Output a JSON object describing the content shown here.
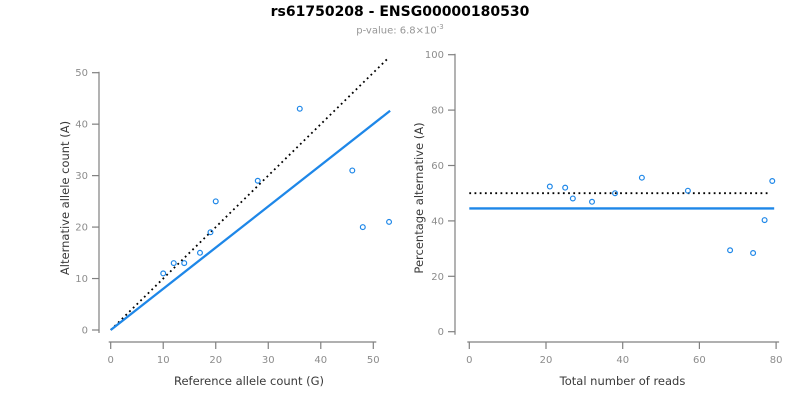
{
  "header": {
    "title": "rs61750208 - ENSG00000180530",
    "subtitle_prefix": "p-value: 6.8×10",
    "subtitle_exponent": "-3"
  },
  "colors": {
    "point_blue": "#1e87e8",
    "line_blue": "#1e87e8",
    "dotted_black": "#000000",
    "axis_gray": "#808080",
    "tick_label_gray": "#8c8c8c",
    "axis_title_dark": "#3a3a3a",
    "subtitle_gray": "#969696"
  },
  "chart_data": [
    {
      "type": "scatter",
      "panel": "left",
      "xlabel": "Reference allele count (G)",
      "ylabel": "Alternative allele count (A)",
      "xlim": [
        -2.1,
        55.1
      ],
      "ylim": [
        -2.9,
        53.1
      ],
      "xticks": [
        0,
        10,
        20,
        30,
        40,
        50
      ],
      "yticks": [
        0,
        10,
        20,
        30,
        40,
        50
      ],
      "grid": false,
      "legend": "none",
      "points": [
        [
          10,
          11
        ],
        [
          12,
          13
        ],
        [
          14,
          13
        ],
        [
          17,
          15
        ],
        [
          19,
          19
        ],
        [
          20,
          25
        ],
        [
          28,
          29
        ],
        [
          36,
          43
        ],
        [
          46,
          31
        ],
        [
          48,
          20
        ],
        [
          53,
          21
        ]
      ],
      "lines": [
        {
          "name": "identity-line",
          "style": "dotted",
          "color": "black",
          "x1": 0,
          "y1": 0,
          "x2": 52.7,
          "y2": 52.7
        },
        {
          "name": "fit-line",
          "style": "solid",
          "color": "blue",
          "x1": 0,
          "y1": 0,
          "x2": 53.2,
          "y2": 42.6
        }
      ]
    },
    {
      "type": "scatter",
      "panel": "right",
      "xlabel": "Total number of reads",
      "ylabel": "Percentage alternative (A)",
      "xlim": [
        -3.7,
        83.6
      ],
      "ylim": [
        -4.8,
        100.6
      ],
      "xticks": [
        0,
        20,
        40,
        60,
        80
      ],
      "yticks": [
        0,
        20,
        40,
        60,
        80,
        100
      ],
      "grid": false,
      "legend": "none",
      "points": [
        [
          21,
          52.4
        ],
        [
          25,
          52.0
        ],
        [
          27,
          48.1
        ],
        [
          32,
          46.9
        ],
        [
          38,
          50.0
        ],
        [
          45,
          55.6
        ],
        [
          57,
          50.9
        ],
        [
          68,
          29.4
        ],
        [
          74,
          28.4
        ],
        [
          77,
          40.3
        ],
        [
          79,
          54.4
        ]
      ],
      "lines": [
        {
          "name": "expected-50-line",
          "style": "dotted",
          "color": "black",
          "x1": 0,
          "y1": 50,
          "x2": 78.5,
          "y2": 50
        },
        {
          "name": "mean-percentage-line",
          "style": "solid",
          "color": "blue",
          "x1": 0,
          "y1": 44.5,
          "x2": 79.5,
          "y2": 44.5
        }
      ]
    }
  ]
}
